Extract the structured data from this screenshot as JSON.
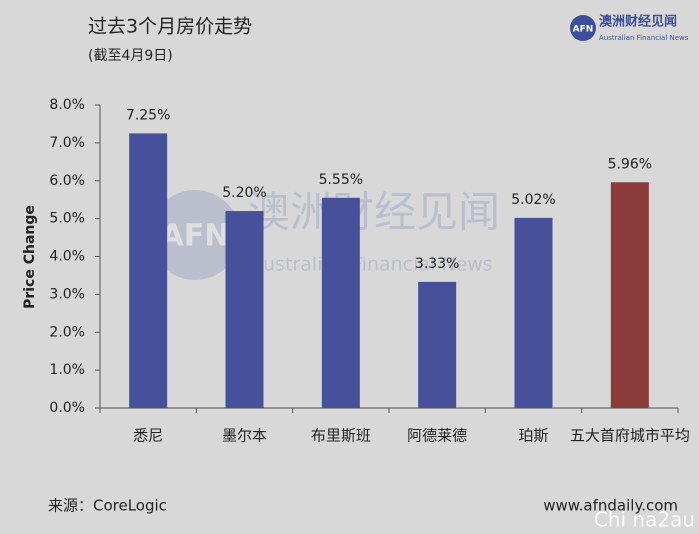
{
  "chart_data": {
    "type": "bar",
    "title": "过去3个月房价走势",
    "subtitle": "(截至4月9日)",
    "y_label": "Price Change",
    "categories": [
      "悉尼",
      "墨尔本",
      "布里斯班",
      "阿德莱德",
      "珀斯",
      "五大首府城市平均"
    ],
    "values": [
      7.25,
      5.2,
      5.55,
      3.33,
      5.02,
      5.96
    ],
    "value_labels": [
      "7.25%",
      "5.20%",
      "5.55%",
      "3.33%",
      "5.02%",
      "5.96%"
    ],
    "colors": [
      "#46509b",
      "#46509b",
      "#46509b",
      "#46509b",
      "#46509b",
      "#8b3b3a"
    ],
    "ylim": [
      0,
      8
    ],
    "yticks": [
      {
        "value": 0,
        "label": "0.0%"
      },
      {
        "value": 1,
        "label": "1.0%"
      },
      {
        "value": 2,
        "label": "2.0%"
      },
      {
        "value": 3,
        "label": "3.0%"
      },
      {
        "value": 4,
        "label": "4.0%"
      },
      {
        "value": 5,
        "label": "5.0%"
      },
      {
        "value": 6,
        "label": "6.0%"
      },
      {
        "value": 7,
        "label": "7.0%"
      },
      {
        "value": 8,
        "label": "8.0%"
      }
    ],
    "grid": false,
    "source": "来源：CoreLogic",
    "website": "www.afndaily.com",
    "logo": {
      "mark": "AFN",
      "name": "澳洲财经见闻",
      "subname": "Australian Financial News"
    },
    "watermark": "Chi na2au"
  }
}
